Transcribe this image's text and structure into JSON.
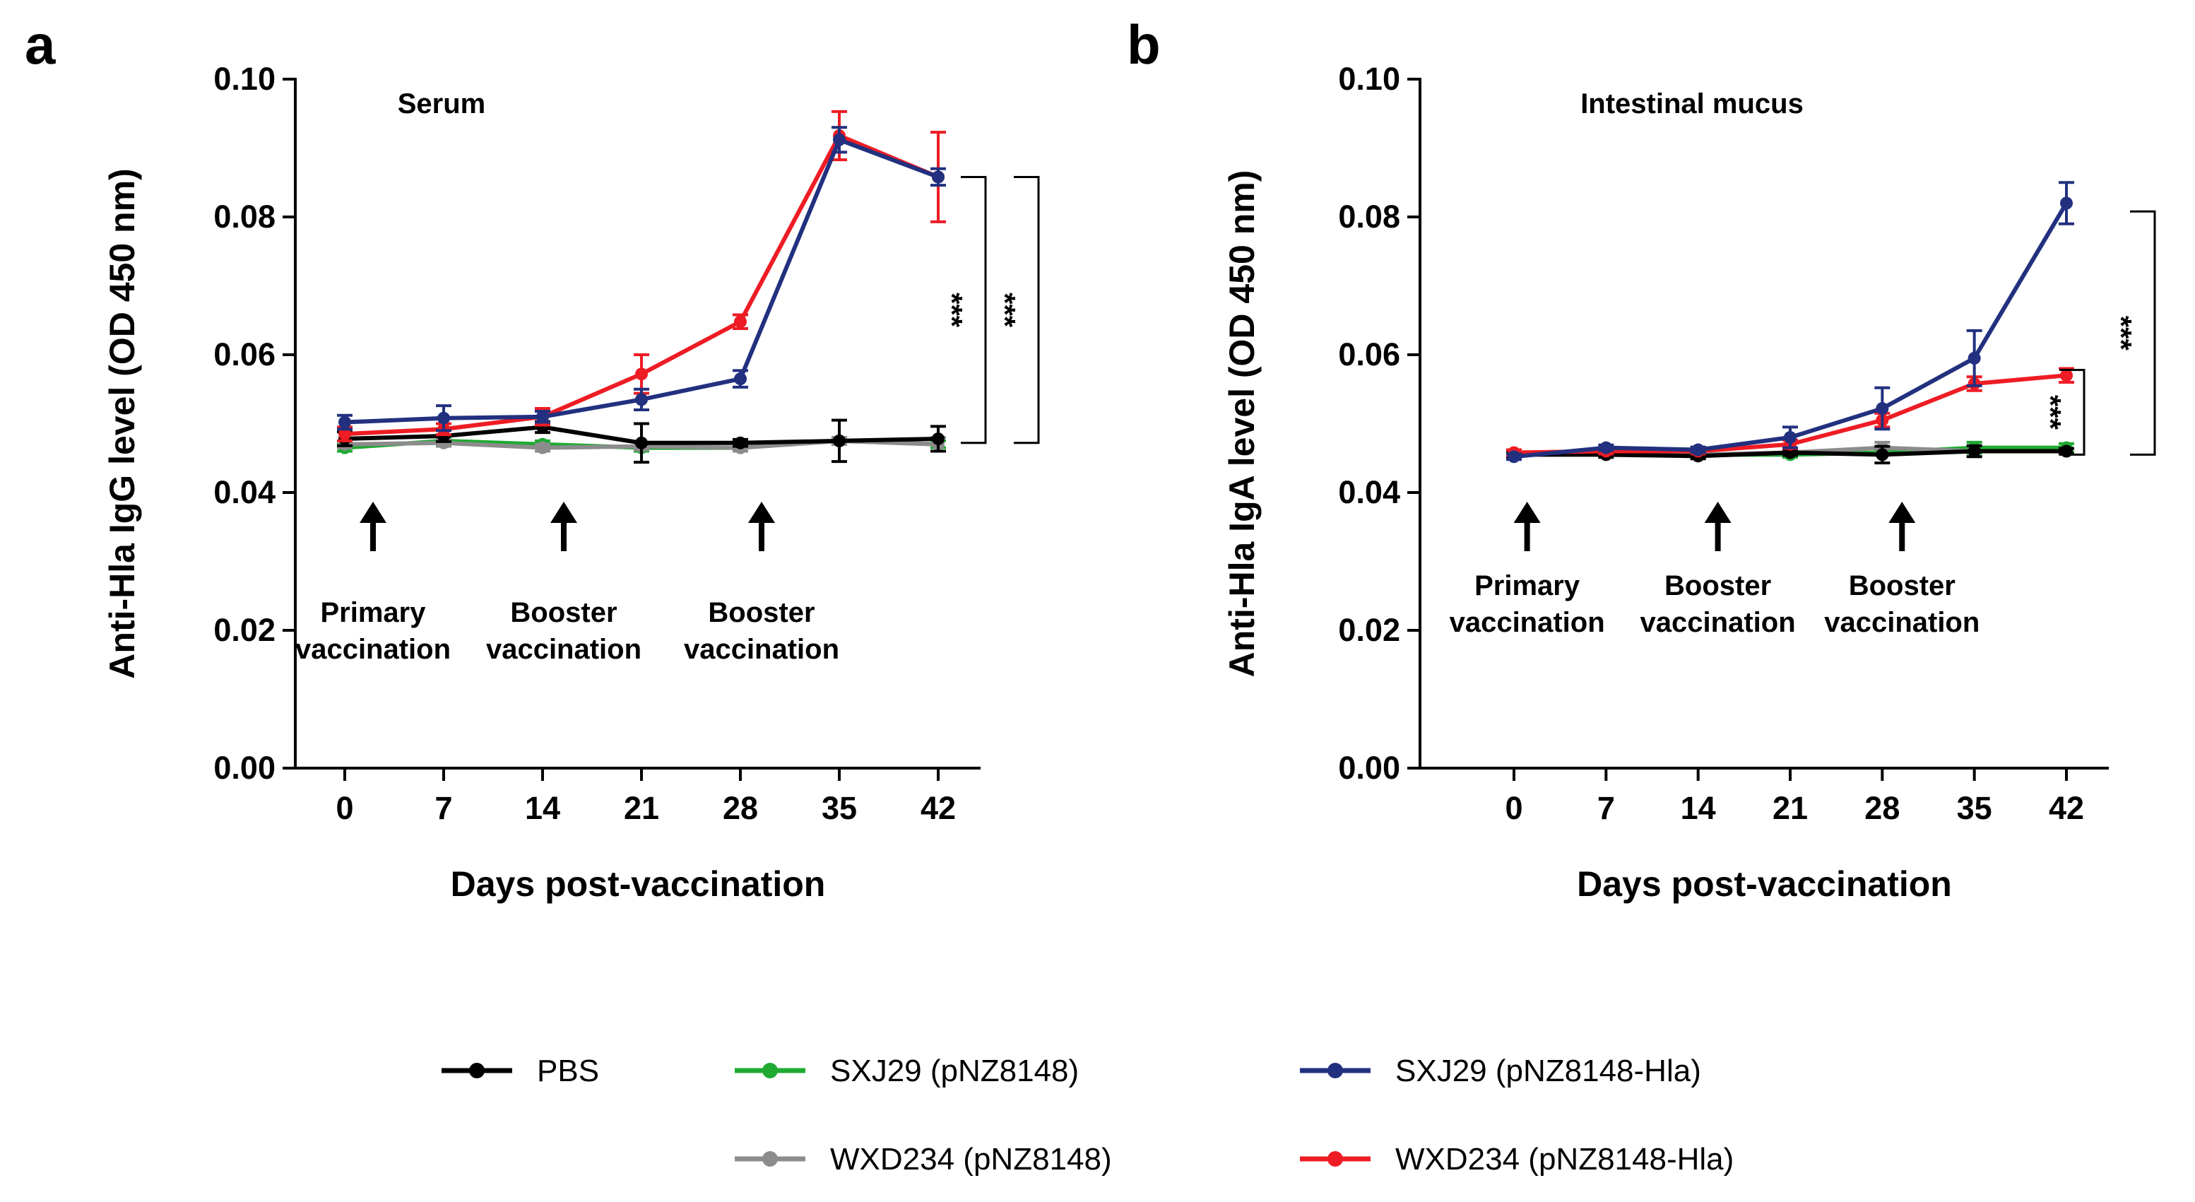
{
  "legend": [
    {
      "name": "PBS",
      "color": "#000000"
    },
    {
      "name": "SXJ29 (pNZ8148)",
      "color": "#1faa32"
    },
    {
      "name": "SXJ29 (pNZ8148-Hla)",
      "color": "#22307f"
    },
    {
      "name": "WXD234 (pNZ8148)",
      "color": "#8c8c8c"
    },
    {
      "name": "WXD234 (pNZ8148-Hla)",
      "color": "#ee1c24"
    }
  ],
  "chart_data": [
    {
      "panel_label": "a",
      "type": "line",
      "title": "Serum",
      "xlabel": "Days post-vaccination",
      "ylabel": "Anti-Hla IgG level (OD 450 nm)",
      "x": [
        0,
        7,
        14,
        21,
        28,
        35,
        42
      ],
      "xticks": [
        "0",
        "7",
        "14",
        "21",
        "28",
        "35",
        "42"
      ],
      "ylim": [
        0,
        0.1
      ],
      "yticks": [
        "0.00",
        "0.02",
        "0.04",
        "0.06",
        "0.08",
        "0.10"
      ],
      "series": [
        {
          "name": "SXJ29 (pNZ8148)",
          "color": "#1faa32",
          "values": [
            0.0465,
            0.0475,
            0.047,
            0.0465,
            0.0465,
            0.0475,
            0.047
          ],
          "errors": [
            0.0005,
            0.0005,
            0.0005,
            0.0005,
            0.0005,
            0.0005,
            0.0005
          ]
        },
        {
          "name": "WXD234 (pNZ8148)",
          "color": "#8c8c8c",
          "values": [
            0.047,
            0.0472,
            0.0465,
            0.0467,
            0.0465,
            0.0475,
            0.047
          ],
          "errors": [
            0.0005,
            0.0005,
            0.0005,
            0.0005,
            0.0005,
            0.0005,
            0.001
          ]
        },
        {
          "name": "PBS",
          "color": "#000000",
          "values": [
            0.0478,
            0.0482,
            0.0495,
            0.0472,
            0.0472,
            0.0475,
            0.0478
          ],
          "errors": [
            0.001,
            0.0008,
            0.0008,
            0.0028,
            0.0005,
            0.003,
            0.0018
          ]
        },
        {
          "name": "WXD234 (pNZ8148-Hla)",
          "color": "#ee1c24",
          "values": [
            0.0485,
            0.0492,
            0.051,
            0.0572,
            0.0648,
            0.0918,
            0.0858
          ],
          "errors": [
            0.001,
            0.0008,
            0.0012,
            0.0028,
            0.001,
            0.0035,
            0.0065
          ]
        },
        {
          "name": "SXJ29 (pNZ8148-Hla)",
          "color": "#22307f",
          "values": [
            0.0502,
            0.0508,
            0.051,
            0.0535,
            0.0565,
            0.0912,
            0.0858
          ],
          "errors": [
            0.001,
            0.0018,
            0.0008,
            0.0015,
            0.0012,
            0.0018,
            0.0012
          ]
        }
      ],
      "arrows_at": [
        2,
        15.5,
        29.5
      ],
      "annotations": [
        {
          "x": 2,
          "lines": [
            "Primary",
            "vaccination"
          ]
        },
        {
          "x": 15.5,
          "lines": [
            "Booster",
            "vaccination"
          ]
        },
        {
          "x": 29.5,
          "lines": [
            "Booster",
            "vaccination"
          ]
        }
      ],
      "significance": [
        {
          "label": "***",
          "y_top": 0.0858,
          "y_bottom": 0.0472,
          "level": 0
        },
        {
          "label": "***",
          "y_top": 0.0858,
          "y_bottom": 0.0472,
          "level": 1
        }
      ]
    },
    {
      "panel_label": "b",
      "type": "line",
      "title": "Intestinal mucus",
      "xlabel": "Days post-vaccination",
      "ylabel": "Anti-Hla IgA level (OD 450 nm)",
      "x": [
        0,
        7,
        14,
        21,
        28,
        35,
        42
      ],
      "xticks": [
        "0",
        "7",
        "14",
        "21",
        "28",
        "35",
        "42"
      ],
      "ylim": [
        0,
        0.1
      ],
      "yticks": [
        "0.00",
        "0.02",
        "0.04",
        "0.06",
        "0.08",
        "0.10"
      ],
      "series": [
        {
          "name": "SXJ29 (pNZ8148)",
          "color": "#1faa32",
          "values": [
            0.0455,
            0.0458,
            0.0455,
            0.0455,
            0.0458,
            0.0465,
            0.0465
          ],
          "errors": [
            0.0004,
            0.0004,
            0.0004,
            0.0004,
            0.0004,
            0.0008,
            0.0006
          ]
        },
        {
          "name": "WXD234 (pNZ8148)",
          "color": "#8c8c8c",
          "values": [
            0.0455,
            0.0457,
            0.0455,
            0.0458,
            0.0465,
            0.046,
            0.046
          ],
          "errors": [
            0.0004,
            0.0004,
            0.0004,
            0.0004,
            0.0008,
            0.0008,
            0.0004
          ]
        },
        {
          "name": "PBS",
          "color": "#000000",
          "values": [
            0.0455,
            0.0455,
            0.0453,
            0.0458,
            0.0455,
            0.046,
            0.046
          ],
          "errors": [
            0.0004,
            0.0004,
            0.0004,
            0.0004,
            0.0012,
            0.0008,
            0.0004
          ]
        },
        {
          "name": "WXD234 (pNZ8148-Hla)",
          "color": "#ee1c24",
          "values": [
            0.0458,
            0.046,
            0.046,
            0.047,
            0.0505,
            0.0558,
            0.057
          ],
          "errors": [
            0.0004,
            0.0004,
            0.0004,
            0.0006,
            0.001,
            0.001,
            0.001
          ]
        },
        {
          "name": "SXJ29 (pNZ8148-Hla)",
          "color": "#22307f",
          "values": [
            0.0452,
            0.0465,
            0.0462,
            0.048,
            0.0522,
            0.0595,
            0.082
          ],
          "errors": [
            0.0004,
            0.0004,
            0.0004,
            0.0015,
            0.003,
            0.004,
            0.003
          ]
        }
      ],
      "arrows_at": [
        1,
        15.5,
        29.5
      ],
      "annotations": [
        {
          "x": 1,
          "lines": [
            "Primary",
            "vaccination"
          ]
        },
        {
          "x": 15.5,
          "lines": [
            "Booster",
            "vaccination"
          ]
        },
        {
          "x": 29.5,
          "lines": [
            "Booster",
            "vaccination"
          ]
        }
      ],
      "significance": [
        {
          "label": "***",
          "y_top": 0.0578,
          "y_bottom": 0.0455,
          "level": 0
        },
        {
          "label": "***",
          "y_top": 0.0808,
          "y_bottom": 0.0455,
          "level": 1
        }
      ]
    }
  ]
}
